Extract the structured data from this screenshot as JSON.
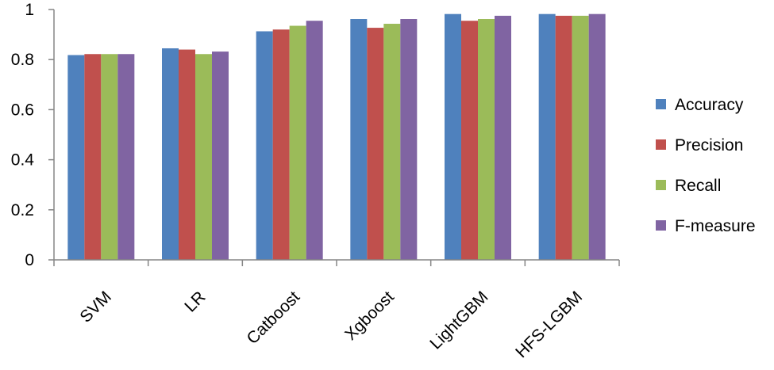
{
  "chart_data": {
    "type": "bar",
    "title": "",
    "xlabel": "",
    "ylabel": "",
    "ylim": [
      0,
      1
    ],
    "yticks": [
      "0",
      "0.2",
      "0.4",
      "0.6",
      "0.8",
      "1"
    ],
    "yticks_values": [
      0,
      0.2,
      0.4,
      0.6,
      0.8,
      1
    ],
    "grid": false,
    "legend_position": "right",
    "categories": [
      "SVM",
      "LR",
      "Catboost",
      "Xgboost",
      "LightGBM",
      "HFS-LGBM"
    ],
    "series": [
      {
        "name": "Accuracy",
        "color": "#4f81bd",
        "values": [
          0.818,
          0.845,
          0.913,
          0.962,
          0.982,
          0.982
        ]
      },
      {
        "name": "Precision",
        "color": "#c0504d",
        "values": [
          0.822,
          0.84,
          0.92,
          0.927,
          0.955,
          0.975
        ]
      },
      {
        "name": "Recall",
        "color": "#9bbb59",
        "values": [
          0.822,
          0.822,
          0.935,
          0.943,
          0.962,
          0.975
        ]
      },
      {
        "name": "F-measure",
        "color": "#8064a2",
        "values": [
          0.822,
          0.832,
          0.955,
          0.962,
          0.975,
          0.982
        ]
      }
    ]
  }
}
